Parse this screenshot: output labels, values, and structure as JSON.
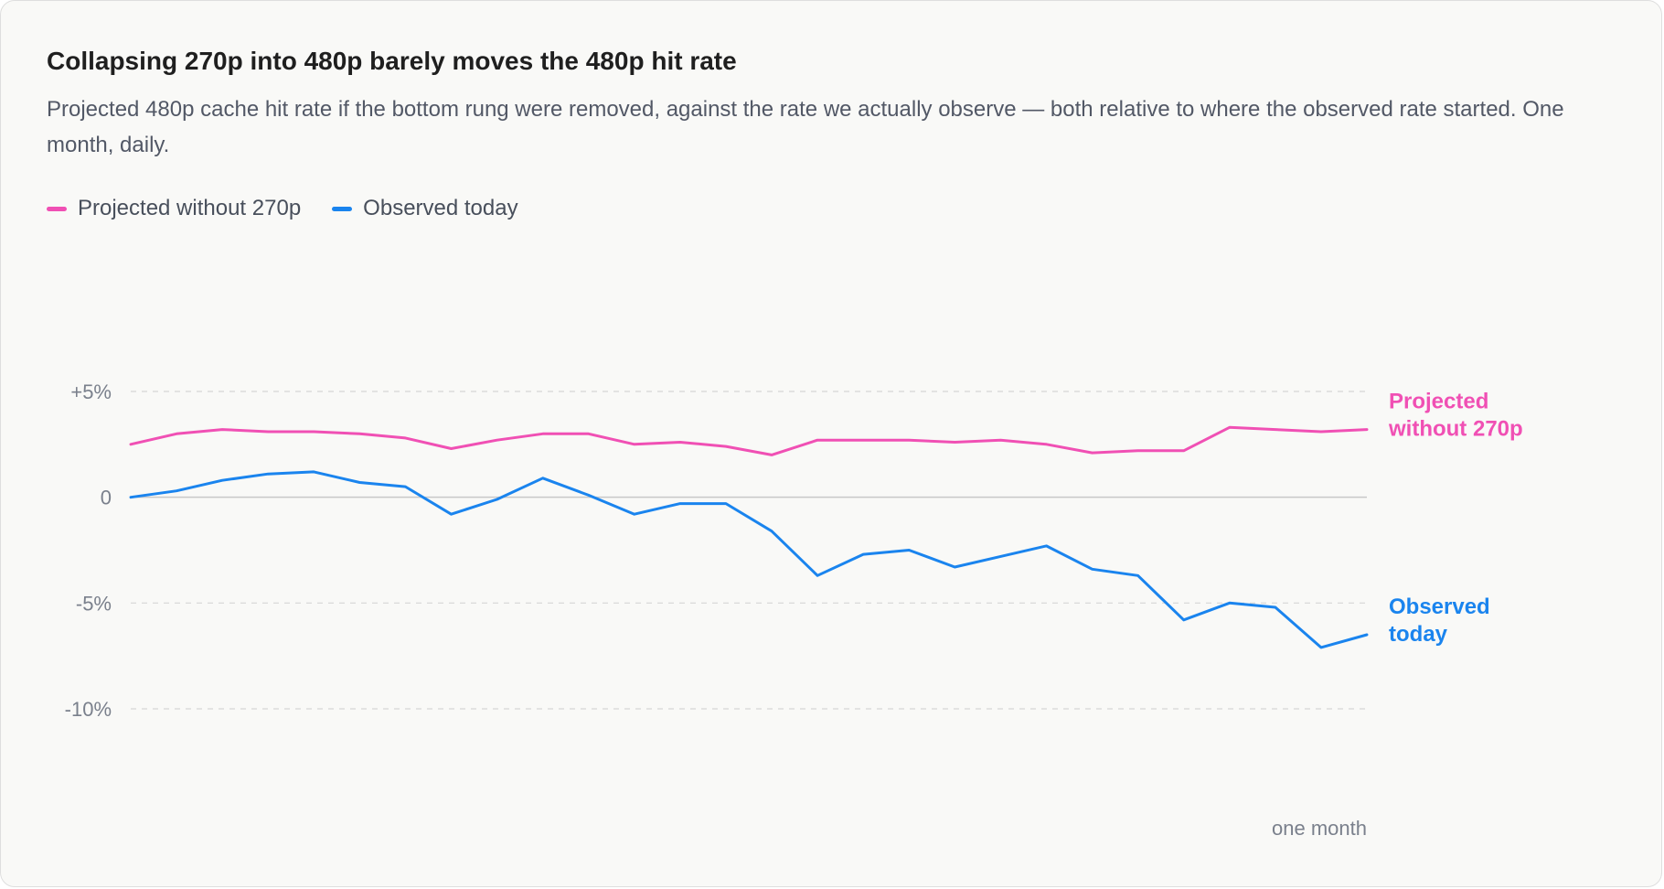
{
  "card": {
    "title": "Collapsing 270p into 480p barely moves the 480p hit rate",
    "subtitle": "Projected 480p cache hit rate if the bottom rung were removed, against the rate we actually observe — both relative to where the observed rate started. One month, daily."
  },
  "colors": {
    "projected": "#f050b4",
    "observed": "#1a84ee",
    "grid": "#d6d6d6",
    "zero_line": "#c8c8c8"
  },
  "chart_data": {
    "type": "line",
    "title": "Collapsing 270p into 480p barely moves the 480p hit rate",
    "subtitle": "Projected 480p cache hit rate if the bottom rung were removed, against the rate we actually observe — both relative to where the observed rate started. One month, daily.",
    "xlabel": "one month",
    "ylabel": "",
    "ylim": [
      -10,
      5
    ],
    "yticks": [
      5,
      0,
      -5,
      -10
    ],
    "ytick_labels": [
      "+5%",
      "0",
      "-5%",
      "-10%"
    ],
    "grid": true,
    "legend_position": "top-left",
    "x": [
      1,
      2,
      3,
      4,
      5,
      6,
      7,
      8,
      9,
      10,
      11,
      12,
      13,
      14,
      15,
      16,
      17,
      18,
      19,
      20,
      21,
      22,
      23,
      24,
      25,
      26,
      27,
      28
    ],
    "series": [
      {
        "key": "projected",
        "name": "Projected without 270p",
        "end_label": [
          "Projected",
          "without 270p"
        ],
        "values": [
          2.5,
          3.0,
          3.2,
          3.1,
          3.1,
          3.0,
          2.8,
          2.3,
          2.7,
          3.0,
          3.0,
          2.5,
          2.6,
          2.4,
          2.0,
          2.7,
          2.7,
          2.7,
          2.6,
          2.7,
          2.5,
          2.1,
          2.2,
          2.2,
          3.3,
          3.2,
          3.1,
          3.2
        ]
      },
      {
        "key": "observed",
        "name": "Observed today",
        "end_label": [
          "Observed",
          "today"
        ],
        "values": [
          0.0,
          0.3,
          0.8,
          1.1,
          1.2,
          0.7,
          0.5,
          -0.8,
          -0.1,
          0.9,
          0.1,
          -0.8,
          -0.3,
          -0.3,
          -1.6,
          -3.7,
          -2.7,
          -2.5,
          -3.3,
          -2.8,
          -2.3,
          -3.4,
          -3.7,
          -5.8,
          -5.0,
          -5.2,
          -7.1,
          -6.5
        ]
      }
    ]
  },
  "legend": [
    {
      "label": "Projected without 270p",
      "color": "#f050b4"
    },
    {
      "label": "Observed today",
      "color": "#1a84ee"
    }
  ]
}
